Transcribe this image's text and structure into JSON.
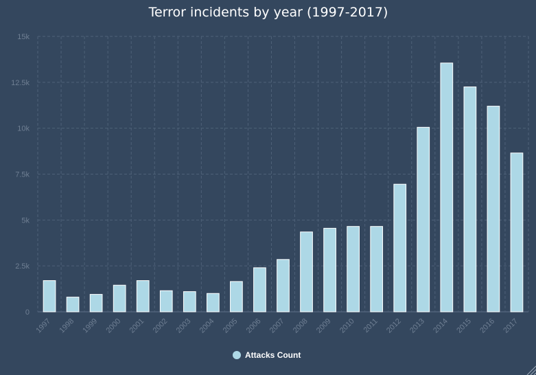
{
  "chart_data": {
    "type": "bar",
    "title": "Terror incidents by year (1997-2017)",
    "xlabel": "",
    "ylabel": "",
    "ylim": [
      0,
      15000
    ],
    "y_ticks": [
      0,
      2500,
      5000,
      7500,
      10000,
      12500,
      15000
    ],
    "y_tick_labels": [
      "0",
      "2.5k",
      "5k",
      "7.5k",
      "10k",
      "12.5k",
      "15k"
    ],
    "grid": true,
    "legend_position": "bottom",
    "categories": [
      "1997",
      "1998",
      "1999",
      "2000",
      "2001",
      "2002",
      "2003",
      "2004",
      "2005",
      "2006",
      "2007",
      "2008",
      "2009",
      "2010",
      "2011",
      "2012",
      "2013",
      "2014",
      "2015",
      "2016",
      "2017"
    ],
    "series": [
      {
        "name": "Attacks Count",
        "color": "#add8e6",
        "values": [
          1700,
          800,
          950,
          1450,
          1700,
          1150,
          1100,
          1000,
          1650,
          2400,
          2850,
          4350,
          4550,
          4650,
          4650,
          6950,
          10050,
          13550,
          12250,
          11200,
          8650
        ]
      }
    ]
  }
}
